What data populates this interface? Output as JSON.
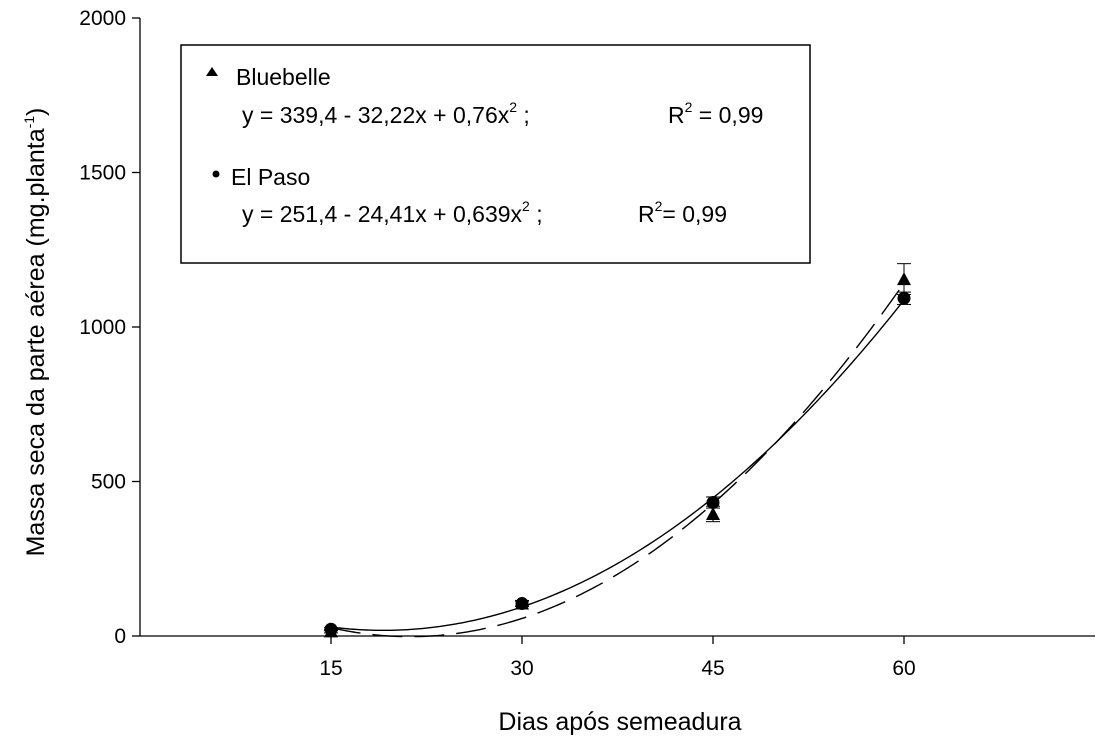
{
  "chart_data": {
    "type": "scatter",
    "xlabel": "Dias após semeadura",
    "ylabel_main": "Massa seca da parte aérea (mg.planta",
    "ylabel_sup": "-1",
    "ylabel_close": ")",
    "xlim": [
      0,
      75
    ],
    "ylim": [
      0,
      2000
    ],
    "x_ticks": [
      15,
      30,
      45,
      60
    ],
    "y_ticks": [
      0,
      500,
      1000,
      1500,
      2000
    ],
    "grid": false,
    "legend_position": "top-left",
    "series": [
      {
        "name": "Bluebelle",
        "marker": "triangle",
        "line_style": "dashed",
        "x": [
          15,
          30,
          45,
          60
        ],
        "y": [
          15,
          105,
          395,
          1155
        ],
        "error": [
          5,
          8,
          25,
          50
        ],
        "fit_coeffs": [
          339.4,
          -32.22,
          0.76
        ],
        "equation_text": "y = 339,4 - 32,22x + 0,76x",
        "equation_sup": "2",
        "equation_sep": " ;",
        "r2_label": "R",
        "r2_sup": "2",
        "r2_value": " = 0,99"
      },
      {
        "name": "El Paso",
        "marker": "circle",
        "line_style": "solid",
        "x": [
          15,
          30,
          45,
          60
        ],
        "y": [
          22,
          105,
          432,
          1093
        ],
        "error": [
          5,
          10,
          18,
          20
        ],
        "fit_coeffs": [
          251.4,
          -24.41,
          0.639
        ],
        "equation_text": "y = 251,4 - 24,41x + 0,639x",
        "equation_sup": "2",
        "equation_sep": " ;",
        "r2_label": "R",
        "r2_sup": "2",
        "r2_value": "= 0,99"
      }
    ]
  }
}
